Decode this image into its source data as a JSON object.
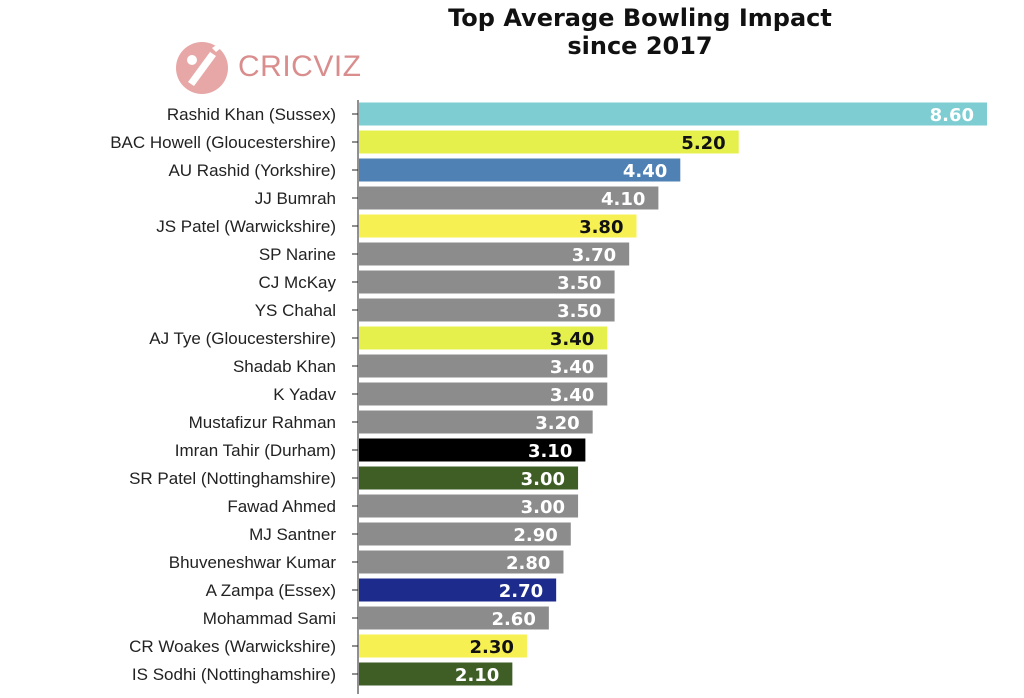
{
  "title_lines": [
    "Top Average Bowling Impact",
    "since 2017"
  ],
  "logo": {
    "text": "CRICVIZ",
    "color": "#d98d8d",
    "icon": "cricket-bat-ball-logo-icon"
  },
  "chart_data": {
    "type": "bar",
    "orientation": "horizontal",
    "title": "Top Average Bowling Impact since 2017",
    "xlabel": "",
    "ylabel": "",
    "xlim": [
      0,
      8.7
    ],
    "grid": false,
    "legend": "none",
    "categories": [
      "Rashid Khan (Sussex)",
      "BAC Howell (Gloucestershire)",
      "AU Rashid (Yorkshire)",
      "JJ Bumrah",
      "JS Patel (Warwickshire)",
      "SP Narine",
      "CJ McKay",
      "YS Chahal",
      "AJ Tye (Gloucestershire)",
      "Shadab Khan",
      "K Yadav",
      "Mustafizur Rahman",
      "Imran Tahir (Durham)",
      "SR Patel (Nottinghamshire)",
      "Fawad Ahmed",
      "MJ Santner",
      "Bhuveneshwar Kumar",
      "A Zampa (Essex)",
      "Mohammad Sami",
      "CR Woakes (Warwickshire)",
      "IS Sodhi (Nottinghamshire)"
    ],
    "values": [
      8.6,
      5.2,
      4.4,
      4.1,
      3.8,
      3.7,
      3.5,
      3.5,
      3.4,
      3.4,
      3.4,
      3.2,
      3.1,
      3.0,
      3.0,
      2.9,
      2.8,
      2.7,
      2.6,
      2.3,
      2.1
    ],
    "value_labels": [
      "8.60",
      "5.20",
      "4.40",
      "4.10",
      "3.80",
      "3.70",
      "3.50",
      "3.50",
      "3.40",
      "3.40",
      "3.40",
      "3.20",
      "3.10",
      "3.00",
      "3.00",
      "2.90",
      "2.80",
      "2.70",
      "2.60",
      "2.30",
      "2.10"
    ],
    "bar_colors": [
      "#7ecdd2",
      "#e6f04c",
      "#4f81b5",
      "#8c8c8c",
      "#f7f052",
      "#8c8c8c",
      "#8c8c8c",
      "#8c8c8c",
      "#e6f04c",
      "#8c8c8c",
      "#8c8c8c",
      "#8c8c8c",
      "#000000",
      "#3e5e25",
      "#8c8c8c",
      "#8c8c8c",
      "#8c8c8c",
      "#1c2b8c",
      "#8c8c8c",
      "#f7f052",
      "#3e5e25"
    ],
    "label_colors": [
      "#ffffff",
      "#111111",
      "#ffffff",
      "#ffffff",
      "#111111",
      "#ffffff",
      "#ffffff",
      "#ffffff",
      "#111111",
      "#ffffff",
      "#ffffff",
      "#ffffff",
      "#ffffff",
      "#ffffff",
      "#ffffff",
      "#ffffff",
      "#ffffff",
      "#ffffff",
      "#ffffff",
      "#111111",
      "#ffffff"
    ]
  }
}
